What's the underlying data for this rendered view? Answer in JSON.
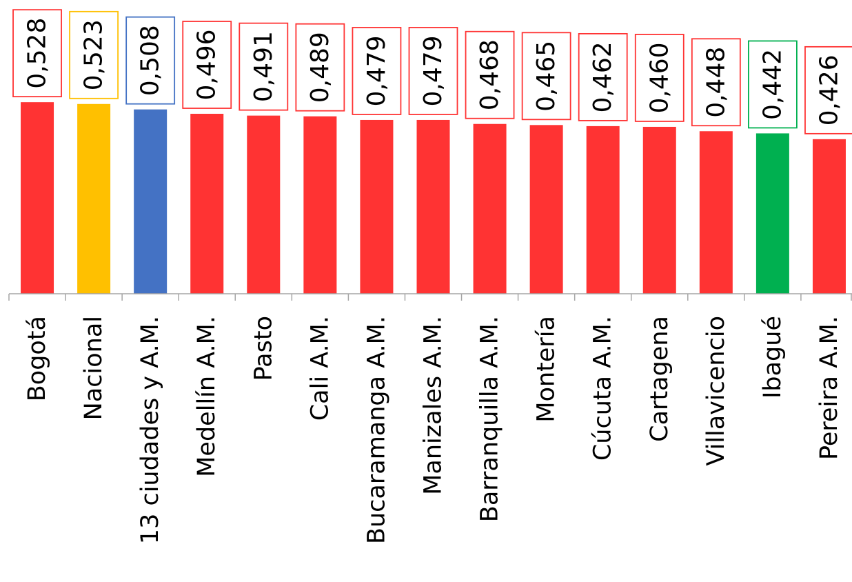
{
  "chart_data": {
    "type": "bar",
    "categories": [
      "Bogotá",
      "Nacional",
      "13 ciudades y A.M.",
      "Medellín A.M.",
      "Pasto",
      "Cali A.M.",
      "Bucaramanga A.M.",
      "Manizales A.M.",
      "Barranquilla A.M.",
      "Montería",
      "Cúcuta A.M.",
      "Cartagena",
      "Villavicencio",
      "Ibagué",
      "Pereira A.M."
    ],
    "values": [
      0.528,
      0.523,
      0.508,
      0.496,
      0.491,
      0.489,
      0.479,
      0.479,
      0.468,
      0.465,
      0.462,
      0.46,
      0.448,
      0.442,
      0.426
    ],
    "labels": [
      "0,528",
      "0,523",
      "0,508",
      "0,496",
      "0,491",
      "0,489",
      "0,479",
      "0,479",
      "0,468",
      "0,465",
      "0,462",
      "0,460",
      "0,448",
      "0,442",
      "0,426"
    ],
    "colors": [
      "#ff3333",
      "#ffc000",
      "#4472c4",
      "#ff3333",
      "#ff3333",
      "#ff3333",
      "#ff3333",
      "#ff3333",
      "#ff3333",
      "#ff3333",
      "#ff3333",
      "#ff3333",
      "#ff3333",
      "#00b050",
      "#ff3333"
    ],
    "title": "",
    "xlabel": "",
    "ylabel": "",
    "ylim": [
      0,
      0.6
    ],
    "grid": false,
    "legend": "none",
    "data_labels": "boxed, rotated vertical"
  }
}
